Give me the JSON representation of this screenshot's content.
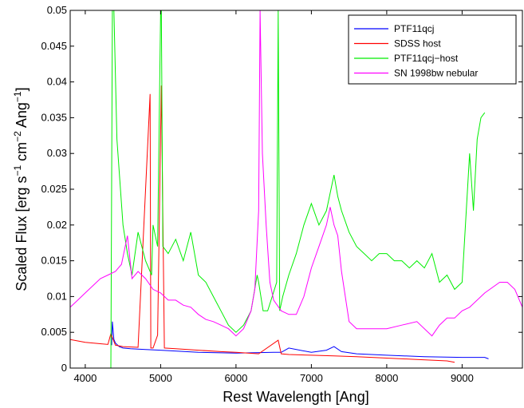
{
  "chart_data": {
    "type": "line",
    "title": "",
    "xlabel": "Rest Wavelength [Ang]",
    "ylabel_parts": {
      "p1": "Scaled Flux [erg s",
      "e1": "−1",
      "p2": " cm",
      "e2": "−2",
      "p3": " Ang",
      "e3": "−1",
      "p4": "]"
    },
    "xlim": [
      3800,
      9800
    ],
    "ylim": [
      0,
      0.05
    ],
    "x_ticks": [
      4000,
      5000,
      6000,
      7000,
      8000,
      9000
    ],
    "x_tick_labels": [
      "4000",
      "5000",
      "6000",
      "7000",
      "8000",
      "9000"
    ],
    "y_ticks": [
      0,
      0.005,
      0.01,
      0.015,
      0.02,
      0.025,
      0.03,
      0.035,
      0.04,
      0.045,
      0.05
    ],
    "y_tick_labels": [
      "0",
      "0.005",
      "0.01",
      "0.015",
      "0.02",
      "0.025",
      "0.03",
      "0.035",
      "0.04",
      "0.045",
      "0.05"
    ],
    "grid": false,
    "legend_position": "top-right",
    "series": [
      {
        "name": "PTF11qcj",
        "color": "#0000ff",
        "x": [
          4350,
          4360,
          4380,
          4400,
          4450,
          4500,
          4600,
          4800,
          5000,
          5500,
          6000,
          6500,
          6600,
          6700,
          7000,
          7200,
          7300,
          7400,
          7600,
          8000,
          8500,
          9000,
          9300,
          9350
        ],
        "y": [
          0.0032,
          0.0065,
          0.004,
          0.0035,
          0.003,
          0.0028,
          0.0027,
          0.0026,
          0.0025,
          0.0022,
          0.0021,
          0.0022,
          0.0022,
          0.0028,
          0.0022,
          0.0025,
          0.003,
          0.0023,
          0.002,
          0.0018,
          0.0016,
          0.0015,
          0.0015,
          0.0013
        ]
      },
      {
        "name": "SDSS host",
        "color": "#ff0000",
        "x": [
          3800,
          3900,
          4000,
          4100,
          4200,
          4300,
          4340,
          4400,
          4500,
          4700,
          4860,
          4870,
          4900,
          4960,
          5010,
          5050,
          5200,
          5500,
          5800,
          6000,
          6300,
          6560,
          6600,
          6700,
          7000,
          7300,
          7600,
          8000,
          8400,
          8800,
          8900
        ],
        "y": [
          0.004,
          0.0038,
          0.0036,
          0.0035,
          0.0034,
          0.0033,
          0.0048,
          0.0032,
          0.003,
          0.0029,
          0.0383,
          0.0028,
          0.0028,
          0.0046,
          0.0395,
          0.0028,
          0.0027,
          0.0025,
          0.0023,
          0.0022,
          0.002,
          0.0039,
          0.002,
          0.0019,
          0.0018,
          0.0017,
          0.0016,
          0.0014,
          0.0012,
          0.001,
          0.0008
        ]
      },
      {
        "name": "PTF11qcj−host",
        "color": "#00ee00",
        "x": [
          4340,
          4360,
          4380,
          4420,
          4500,
          4560,
          4620,
          4700,
          4800,
          4880,
          4900,
          4960,
          5000,
          5010,
          5030,
          5100,
          5200,
          5300,
          5400,
          5500,
          5600,
          5700,
          5800,
          5900,
          6000,
          6100,
          6200,
          6280,
          6300,
          6360,
          6420,
          6480,
          6540,
          6560,
          6580,
          6620,
          6700,
          6800,
          6900,
          7000,
          7100,
          7200,
          7280,
          7300,
          7350,
          7400,
          7500,
          7600,
          7700,
          7800,
          7900,
          8000,
          8100,
          8200,
          8300,
          8400,
          8500,
          8600,
          8700,
          8800,
          8900,
          9000,
          9100,
          9150,
          9200,
          9250,
          9300
        ],
        "y": [
          0.0,
          0.05,
          0.05,
          0.032,
          0.02,
          0.016,
          0.013,
          0.019,
          0.015,
          0.013,
          0.02,
          0.017,
          0.05,
          0.05,
          0.017,
          0.016,
          0.018,
          0.015,
          0.019,
          0.013,
          0.012,
          0.01,
          0.008,
          0.006,
          0.005,
          0.006,
          0.008,
          0.013,
          0.012,
          0.008,
          0.008,
          0.01,
          0.012,
          0.05,
          0.008,
          0.01,
          0.013,
          0.016,
          0.02,
          0.023,
          0.02,
          0.022,
          0.026,
          0.027,
          0.024,
          0.022,
          0.019,
          0.017,
          0.016,
          0.015,
          0.016,
          0.016,
          0.015,
          0.015,
          0.014,
          0.015,
          0.014,
          0.016,
          0.012,
          0.013,
          0.011,
          0.012,
          0.03,
          0.022,
          0.032,
          0.035,
          0.0357
        ]
      },
      {
        "name": "SN 1998bw nebular",
        "color": "#ff00ff",
        "x": [
          3800,
          3900,
          4000,
          4100,
          4200,
          4300,
          4400,
          4480,
          4560,
          4620,
          4700,
          4800,
          4900,
          5000,
          5100,
          5200,
          5300,
          5400,
          5500,
          5600,
          5700,
          5800,
          5900,
          6000,
          6100,
          6200,
          6250,
          6300,
          6320,
          6350,
          6400,
          6450,
          6500,
          6600,
          6700,
          6800,
          6900,
          7000,
          7100,
          7200,
          7250,
          7300,
          7350,
          7400,
          7500,
          7600,
          7800,
          8000,
          8200,
          8400,
          8600,
          8700,
          8800,
          8900,
          9000,
          9100,
          9300,
          9500,
          9600,
          9700,
          9800
        ],
        "y": [
          0.0085,
          0.0095,
          0.0105,
          0.0115,
          0.0125,
          0.013,
          0.0135,
          0.0145,
          0.0185,
          0.0125,
          0.0135,
          0.0125,
          0.011,
          0.0105,
          0.0095,
          0.0095,
          0.0088,
          0.0085,
          0.0075,
          0.0068,
          0.0065,
          0.006,
          0.0055,
          0.0045,
          0.0055,
          0.008,
          0.011,
          0.022,
          0.05,
          0.03,
          0.02,
          0.012,
          0.0095,
          0.008,
          0.0075,
          0.0075,
          0.01,
          0.014,
          0.017,
          0.02,
          0.0225,
          0.02,
          0.0185,
          0.0135,
          0.0065,
          0.0055,
          0.0055,
          0.0055,
          0.006,
          0.0065,
          0.0045,
          0.006,
          0.007,
          0.007,
          0.008,
          0.0085,
          0.0105,
          0.012,
          0.012,
          0.011,
          0.0085
        ]
      }
    ]
  }
}
